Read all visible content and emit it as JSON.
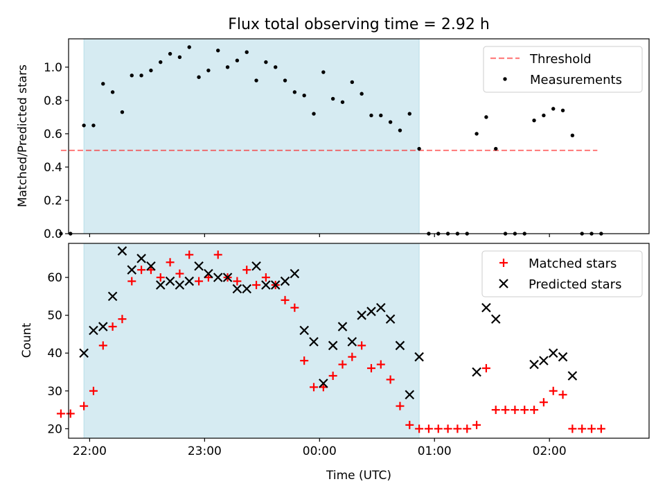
{
  "figure_title": "Flux total observing time = 2.92 h",
  "colors": {
    "shade": "#add8e6",
    "threshold": "#ff0000",
    "measurements": "#000000",
    "matched": "#ff0000",
    "predicted": "#000000"
  },
  "chart_data": [
    {
      "type": "scatter",
      "title": "Flux total observing time = 2.92 h",
      "xlabel": "",
      "ylabel": "Matched/Predicted stars",
      "x_unit": "time (UTC, HH:MM)",
      "xlim": [
        "21:49",
        "02:52"
      ],
      "ylim": [
        0,
        1.17
      ],
      "x_ticks": [
        "22:00",
        "23:00",
        "00:00",
        "01:00",
        "02:00"
      ],
      "y_ticks": [
        "0.0",
        "0.2",
        "0.4",
        "0.6",
        "0.8",
        "1.0"
      ],
      "shaded_region": {
        "x_start": "21:57",
        "x_end": "00:52"
      },
      "legend": {
        "location": "upper right",
        "entries": [
          "Threshold",
          "Measurements"
        ]
      },
      "threshold": {
        "name": "Threshold",
        "y": 0.5,
        "x_start": "21:45",
        "x_end": "02:25",
        "style": "dashed"
      },
      "series": [
        {
          "name": "Measurements",
          "x": [
            "21:45",
            "21:50",
            "21:57",
            "22:02",
            "22:07",
            "22:12",
            "22:17",
            "22:22",
            "22:27",
            "22:32",
            "22:37",
            "22:42",
            "22:47",
            "22:52",
            "22:57",
            "23:02",
            "23:07",
            "23:12",
            "23:17",
            "23:22",
            "23:27",
            "23:32",
            "23:37",
            "23:42",
            "23:47",
            "23:52",
            "23:57",
            "24:02",
            "24:07",
            "24:12",
            "24:17",
            "24:22",
            "24:27",
            "24:32",
            "24:37",
            "24:42",
            "24:47",
            "24:52",
            "24:57",
            "25:02",
            "25:07",
            "25:12",
            "25:17",
            "25:22",
            "25:27",
            "25:32",
            "25:37",
            "25:42",
            "25:47",
            "25:52",
            "25:57",
            "26:02",
            "26:07",
            "26:12",
            "26:17",
            "26:22",
            "26:27"
          ],
          "y": [
            0.0,
            0.0,
            0.65,
            0.65,
            0.9,
            0.85,
            0.73,
            0.95,
            0.95,
            0.98,
            1.03,
            1.08,
            1.06,
            1.12,
            0.94,
            0.98,
            1.1,
            1.0,
            1.04,
            1.09,
            0.92,
            1.03,
            1.0,
            0.92,
            0.85,
            0.83,
            0.72,
            0.97,
            0.81,
            0.79,
            0.91,
            0.84,
            0.71,
            0.71,
            0.67,
            0.62,
            0.72,
            0.51,
            0.0,
            0.0,
            0.0,
            0.0,
            0.0,
            0.6,
            0.7,
            0.51,
            0.0,
            0.0,
            0.0,
            0.68,
            0.71,
            0.75,
            0.74,
            0.59,
            0.0,
            0.0,
            0.0
          ]
        }
      ]
    },
    {
      "type": "scatter",
      "title": "",
      "xlabel": "Time (UTC)",
      "ylabel": "Count",
      "x_unit": "time (UTC, HH:MM)",
      "xlim": [
        "21:49",
        "02:52"
      ],
      "ylim": [
        17.5,
        69
      ],
      "x_ticks": [
        "22:00",
        "23:00",
        "00:00",
        "01:00",
        "02:00"
      ],
      "y_ticks": [
        "20",
        "30",
        "40",
        "50",
        "60"
      ],
      "shaded_region": {
        "x_start": "21:57",
        "x_end": "00:52"
      },
      "legend": {
        "location": "upper right",
        "entries": [
          "Matched stars",
          "Predicted stars"
        ]
      },
      "series": [
        {
          "name": "Matched stars",
          "marker": "plus",
          "x": [
            "21:45",
            "21:50",
            "21:57",
            "22:02",
            "22:07",
            "22:12",
            "22:17",
            "22:22",
            "22:27",
            "22:32",
            "22:37",
            "22:42",
            "22:47",
            "22:52",
            "22:57",
            "23:02",
            "23:07",
            "23:12",
            "23:17",
            "23:22",
            "23:27",
            "23:32",
            "23:37",
            "23:42",
            "23:47",
            "23:52",
            "23:57",
            "24:02",
            "24:07",
            "24:12",
            "24:17",
            "24:22",
            "24:27",
            "24:32",
            "24:37",
            "24:42",
            "24:47",
            "24:52",
            "24:57",
            "25:02",
            "25:07",
            "25:12",
            "25:17",
            "25:22",
            "25:27",
            "25:32",
            "25:37",
            "25:42",
            "25:47",
            "25:52",
            "25:57",
            "26:02",
            "26:07",
            "26:12",
            "26:17",
            "26:22",
            "26:27"
          ],
          "y": [
            24,
            24,
            26,
            30,
            42,
            47,
            49,
            59,
            62,
            62,
            60,
            64,
            61,
            66,
            59,
            60,
            66,
            60,
            59,
            62,
            58,
            60,
            58,
            54,
            52,
            38,
            31,
            31,
            34,
            37,
            39,
            42,
            36,
            37,
            33,
            26,
            21,
            20,
            20,
            20,
            20,
            20,
            20,
            21,
            36,
            25,
            25,
            25,
            25,
            25,
            27,
            30,
            29,
            20,
            20,
            20,
            20
          ]
        },
        {
          "name": "Predicted stars",
          "marker": "x",
          "x": [
            "21:57",
            "22:02",
            "22:07",
            "22:12",
            "22:17",
            "22:22",
            "22:27",
            "22:32",
            "22:37",
            "22:42",
            "22:47",
            "22:52",
            "22:57",
            "23:02",
            "23:07",
            "23:12",
            "23:17",
            "23:22",
            "23:27",
            "23:32",
            "23:37",
            "23:42",
            "23:47",
            "23:52",
            "23:57",
            "24:02",
            "24:07",
            "24:12",
            "24:17",
            "24:22",
            "24:27",
            "24:32",
            "24:37",
            "24:42",
            "24:47",
            "24:52",
            "25:22",
            "25:27",
            "25:32",
            "25:52",
            "25:57",
            "26:02",
            "26:07",
            "26:12"
          ],
          "y": [
            40,
            46,
            47,
            55,
            67,
            62,
            65,
            63,
            58,
            59,
            58,
            59,
            63,
            61,
            60,
            60,
            57,
            57,
            63,
            58,
            58,
            59,
            61,
            46,
            43,
            32,
            42,
            47,
            43,
            50,
            51,
            52,
            49,
            42,
            29,
            39,
            35,
            52,
            49,
            37,
            38,
            40,
            39,
            34
          ]
        }
      ]
    }
  ]
}
